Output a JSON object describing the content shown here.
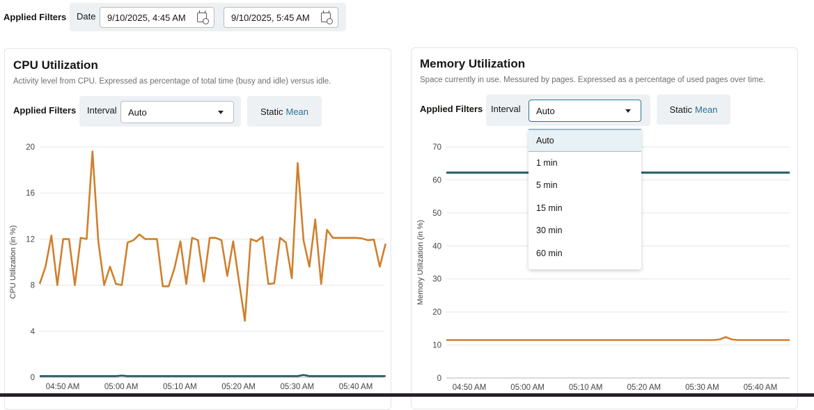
{
  "header": {
    "applied_filters_label": "Applied Filters",
    "date_label": "Date",
    "start_date": "9/10/2025, 4:45 AM",
    "end_date": "9/10/2025, 5:45 AM"
  },
  "cpu": {
    "title": "CPU Utilization",
    "subtitle": "Activity level from CPU. Expressed as percentage of total time (busy and idle) versus idle.",
    "applied_filters_label": "Applied Filters",
    "interval_label": "Interval",
    "interval_value": "Auto",
    "static_label": "Static",
    "mean_label": "Mean"
  },
  "memory": {
    "title": "Memory Utilization",
    "subtitle": "Space currently in use. Messured by pages. Expressed as a percentage of used pages over time.",
    "applied_filters_label": "Applied Filters",
    "interval_label": "Interval",
    "interval_value": "Auto",
    "static_label": "Static",
    "mean_label": "Mean",
    "dropdown_options": [
      "Auto",
      "1 min",
      "5 min",
      "15 min",
      "30 min",
      "60 min"
    ],
    "dropdown_selected": "Auto"
  },
  "colors": {
    "orange": "#d07f2c",
    "teal": "#235a63",
    "accent": "#2f6f94",
    "filter_bg": "#edf1f4"
  },
  "chart_data": [
    {
      "type": "line",
      "ylabel": "CPU Utilization (in %)",
      "ylim": [
        0,
        20
      ],
      "yticks": [
        0,
        4,
        8,
        12,
        16,
        20
      ],
      "grid": true,
      "xticks": [
        "04:50 AM",
        "05:00 AM",
        "05:10 AM",
        "05:20 AM",
        "05:30 AM",
        "05:40 AM"
      ],
      "x": [
        "04:46",
        "04:47",
        "04:48",
        "04:49",
        "04:50",
        "04:51",
        "04:52",
        "04:53",
        "04:54",
        "04:55",
        "04:56",
        "04:57",
        "04:58",
        "04:59",
        "05:00",
        "05:01",
        "05:02",
        "05:03",
        "05:04",
        "05:05",
        "05:06",
        "05:07",
        "05:08",
        "05:09",
        "05:10",
        "05:11",
        "05:12",
        "05:13",
        "05:14",
        "05:15",
        "05:16",
        "05:17",
        "05:18",
        "05:19",
        "05:20",
        "05:21",
        "05:22",
        "05:23",
        "05:24",
        "05:25",
        "05:26",
        "05:27",
        "05:28",
        "05:29",
        "05:30",
        "05:31",
        "05:32",
        "05:33",
        "05:34",
        "05:35",
        "05:36",
        "05:37",
        "05:38",
        "05:39",
        "05:40",
        "05:41",
        "05:42",
        "05:43",
        "05:44",
        "05:45"
      ],
      "series": [
        {
          "color": "#d07f2c",
          "values": [
            8.1,
            9.6,
            12.3,
            8.0,
            12.0,
            12.0,
            8.0,
            12.1,
            12.0,
            19.6,
            11.8,
            8.0,
            9.6,
            8.1,
            8.0,
            11.7,
            11.9,
            12.4,
            12.0,
            12.0,
            12.0,
            7.9,
            7.9,
            9.5,
            11.8,
            8.1,
            12.1,
            11.9,
            8.3,
            12.1,
            12.1,
            11.9,
            8.8,
            11.8,
            8.3,
            4.9,
            12.0,
            11.8,
            12.2,
            8.1,
            8.15,
            12.1,
            11.7,
            8.6,
            18.6,
            11.9,
            9.6,
            13.7,
            8.1,
            12.8,
            12.1,
            12.1,
            12.1,
            12.1,
            12.1,
            12.05,
            11.9,
            11.95,
            9.6,
            11.6
          ]
        },
        {
          "color": "#235a63",
          "values": [
            0.1,
            0.1,
            0.1,
            0.1,
            0.1,
            0.1,
            0.1,
            0.1,
            0.1,
            0.1,
            0.1,
            0.1,
            0.1,
            0.1,
            0.15,
            0.1,
            0.1,
            0.1,
            0.1,
            0.1,
            0.1,
            0.1,
            0.1,
            0.1,
            0.1,
            0.1,
            0.1,
            0.1,
            0.1,
            0.1,
            0.1,
            0.1,
            0.1,
            0.1,
            0.1,
            0.1,
            0.1,
            0.1,
            0.1,
            0.1,
            0.1,
            0.1,
            0.1,
            0.1,
            0.1,
            0.2,
            0.1,
            0.1,
            0.1,
            0.1,
            0.1,
            0.1,
            0.1,
            0.1,
            0.1,
            0.1,
            0.1,
            0.1,
            0.1,
            0.1
          ]
        }
      ]
    },
    {
      "type": "line",
      "ylabel": "Memory Utilization (in %)",
      "ylim": [
        0,
        70
      ],
      "yticks": [
        0,
        10,
        20,
        30,
        40,
        50,
        60,
        70
      ],
      "grid": true,
      "xticks": [
        "04:50 AM",
        "05:00 AM",
        "05:10 AM",
        "05:20 AM",
        "05:30 AM",
        "05:40 AM"
      ],
      "series": [
        {
          "color": "#d07f2c",
          "values": [
            11.5,
            11.5,
            11.5,
            11.5,
            11.5,
            11.5,
            11.5,
            11.5,
            11.5,
            11.5,
            11.5,
            11.5,
            11.5,
            11.5,
            11.5,
            11.5,
            11.5,
            11.5,
            11.5,
            11.5,
            11.5,
            11.5,
            11.5,
            11.5,
            11.5,
            11.5,
            11.5,
            11.5,
            11.5,
            11.5,
            11.5,
            11.5,
            11.5,
            11.5,
            11.5,
            11.5,
            11.5,
            11.5,
            11.5,
            11.5,
            11.5,
            11.5,
            11.5,
            11.5,
            11.5,
            11.5,
            11.5,
            11.7,
            12.4,
            11.7,
            11.5,
            11.5,
            11.5,
            11.5,
            11.5,
            11.5,
            11.5,
            11.5,
            11.5,
            11.5
          ]
        },
        {
          "color": "#235a63",
          "values": [
            62.2,
            62.2,
            62.2,
            62.2,
            62.2,
            62.2,
            62.2,
            62.2,
            62.2,
            62.2,
            62.2,
            62.2,
            62.2,
            62.2,
            62.2,
            62.2,
            62.2,
            62.2,
            62.2,
            62.2,
            62.2,
            62.2,
            62.2,
            62.2,
            62.2,
            62.2,
            62.2,
            62.2,
            62.2,
            62.2,
            62.2,
            62.2,
            62.2,
            62.2,
            62.2,
            62.2,
            62.2,
            62.2,
            62.2,
            62.2,
            62.2,
            62.2,
            62.2,
            62.2,
            62.2,
            62.2,
            62.2,
            62.2,
            62.2,
            62.2,
            62.2,
            62.2,
            62.2,
            62.2,
            62.2,
            62.2,
            62.2,
            62.2,
            62.2,
            62.2
          ]
        }
      ]
    }
  ]
}
